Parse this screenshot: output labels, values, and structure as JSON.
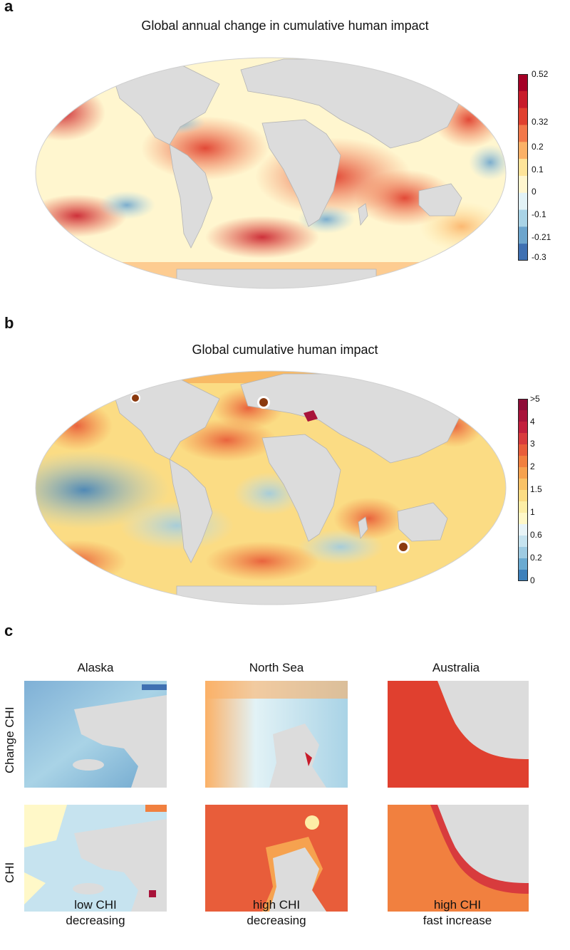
{
  "panel_a": {
    "letter": "a",
    "title": "Global annual change in cumulative human impact",
    "colorbar": {
      "ticks": [
        "0.52",
        "0.32",
        "0.2",
        "0.1",
        "0",
        "-0.1",
        "-0.21",
        "-0.3"
      ],
      "colors_top_to_bottom": [
        "#a50026",
        "#c81b2a",
        "#e0402f",
        "#f2784a",
        "#fbb167",
        "#fee49a",
        "#fff6cf",
        "#e2f2f6",
        "#a9d3e6",
        "#6da5cd",
        "#3f70b2"
      ]
    }
  },
  "panel_b": {
    "letter": "b",
    "title": "Global cumulative human impact",
    "markers": [
      "alaska-marker",
      "north-sea-marker",
      "australia-marker"
    ],
    "colorbar": {
      "ticks": [
        ">5",
        "4",
        "3",
        "2",
        "1.5",
        "1",
        "0.6",
        "0.2",
        "0"
      ],
      "colors_top_to_bottom": [
        "#8e0b37",
        "#a8133a",
        "#c21f3d",
        "#d83b3d",
        "#e85d3a",
        "#f1803f",
        "#f6a24f",
        "#f9c267",
        "#fbdc84",
        "#fdeea6",
        "#fff8c8",
        "#e8f4f7",
        "#c6e3ef",
        "#9ecbe2",
        "#6aaad1",
        "#3d80bb"
      ]
    }
  },
  "panel_c": {
    "letter": "c",
    "columns": [
      "Alaska",
      "North Sea",
      "Australia"
    ],
    "rows": [
      "Change CHI",
      "CHI"
    ],
    "captions": [
      {
        "line1": "low CHI",
        "line2": "decreasing"
      },
      {
        "line1": "high CHI",
        "line2": "decreasing"
      },
      {
        "line1": "high CHI",
        "line2": "fast increase"
      }
    ]
  },
  "colors": {
    "land": "#dcdcdc",
    "border": "#b4b4b4"
  }
}
